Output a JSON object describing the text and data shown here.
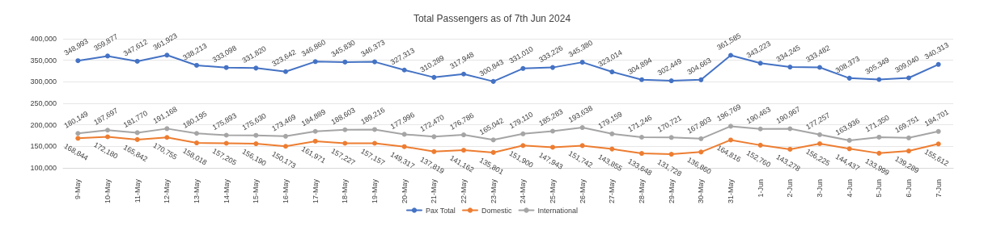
{
  "chart_data": {
    "type": "line",
    "title": "Total Passengers as of 7th Jun 2024",
    "categories": [
      "9-May",
      "10-May",
      "11-May",
      "12-May",
      "13-May",
      "14-May",
      "15-May",
      "16-May",
      "17-May",
      "18-May",
      "19-May",
      "20-May",
      "21-May",
      "22-May",
      "23-May",
      "24-May",
      "25-May",
      "26-May",
      "27-May",
      "28-May",
      "29-May",
      "30-May",
      "31-May",
      "1-Jun",
      "2-Jun",
      "3-Jun",
      "4-Jun",
      "5-Jun",
      "6-Jun",
      "7-Jun"
    ],
    "series": [
      {
        "name": "Pax Total",
        "color": "#4472c4",
        "values": [
          348993,
          359877,
          347612,
          361923,
          338213,
          333098,
          331820,
          323642,
          346860,
          345830,
          346373,
          327313,
          310289,
          317948,
          300843,
          331010,
          333226,
          345380,
          323014,
          304894,
          302449,
          304663,
          361585,
          343223,
          334245,
          333482,
          308373,
          305349,
          309040,
          340313
        ],
        "value_labels": [
          "348,993",
          "359,877",
          "347,612",
          "361,923",
          "338,213",
          "333,098",
          "331,820",
          "323,642",
          "346,860",
          "345,830",
          "346,373",
          "327,313",
          "310,289",
          "317,948",
          "300,843",
          "331,010",
          "333,226",
          "345,380",
          "323,014",
          "304,894",
          "302,449",
          "304,663",
          "361,585",
          "343,223",
          "334,245",
          "333,482",
          "308,373",
          "305,349",
          "309,040",
          "340,313"
        ]
      },
      {
        "name": "Domestic",
        "color": "#ed7d31",
        "values": [
          168844,
          172180,
          165842,
          170755,
          158018,
          157205,
          156190,
          150173,
          161971,
          157227,
          157157,
          149317,
          137819,
          141162,
          135801,
          151900,
          147943,
          151742,
          143855,
          133648,
          131728,
          136860,
          164816,
          152760,
          143278,
          156225,
          144437,
          133999,
          139289,
          155612
        ],
        "value_labels": [
          "168,844",
          "172,180",
          "165,842",
          "170,755",
          "158,018",
          "157,205",
          "156,190",
          "150,173",
          "161,971",
          "157,227",
          "157,157",
          "149,317",
          "137,819",
          "141,162",
          "135,801",
          "151,900",
          "147,943",
          "151,742",
          "143,855",
          "133,648",
          "131,728",
          "136,860",
          "164,816",
          "152,760",
          "143,278",
          "156,225",
          "144,437",
          "133,999",
          "139,289",
          "155,612"
        ]
      },
      {
        "name": "International",
        "color": "#a5a5a5",
        "values": [
          180149,
          187697,
          181770,
          191168,
          180195,
          175893,
          175630,
          173469,
          184889,
          188603,
          189216,
          177996,
          172470,
          176786,
          165042,
          179110,
          185283,
          193638,
          179159,
          171246,
          170721,
          167803,
          196769,
          190463,
          190967,
          177257,
          163936,
          171350,
          169751,
          184701
        ],
        "value_labels": [
          "180,149",
          "187,697",
          "181,770",
          "191,168",
          "180,195",
          "175,893",
          "175,630",
          "173,469",
          "184,889",
          "188,603",
          "189,216",
          "177,996",
          "172,470",
          "176,786",
          "165,042",
          "179,110",
          "185,283",
          "193,638",
          "179,159",
          "171,246",
          "170,721",
          "167,803",
          "196,769",
          "190,463",
          "190,967",
          "177,257",
          "163,936",
          "171,350",
          "169,751",
          "184,701"
        ]
      }
    ],
    "ylim": [
      100000,
      400000
    ],
    "yticks": [
      {
        "value": 100000,
        "label": "100,000"
      },
      {
        "value": 150000,
        "label": "150,000"
      },
      {
        "value": 200000,
        "label": "200,000"
      },
      {
        "value": 250000,
        "label": "250,000"
      },
      {
        "value": 300000,
        "label": "300,000"
      },
      {
        "value": 350000,
        "label": "350,000"
      },
      {
        "value": 400000,
        "label": "400,000"
      }
    ],
    "grid": "y",
    "legend": "bottom",
    "marker": "circle",
    "line_style": "solid"
  }
}
